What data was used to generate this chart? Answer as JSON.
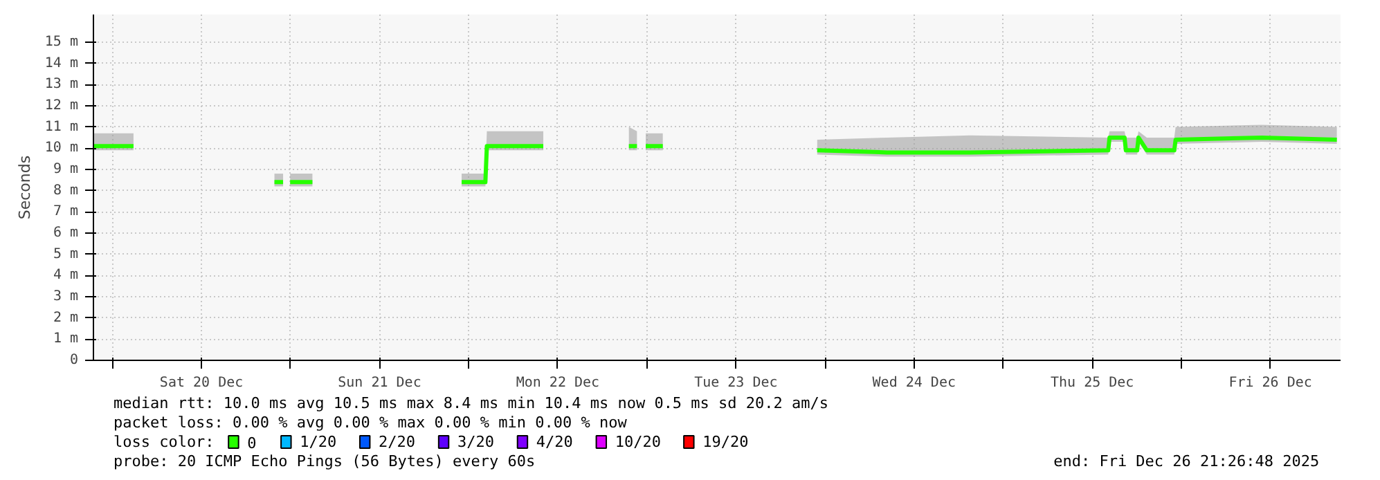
{
  "chart_data": {
    "type": "line",
    "ylabel": "Seconds",
    "xlim": [
      "2025-12-19T21:27",
      "2025-12-26T21:27"
    ],
    "xticks": [
      {
        "value": "2025-12-20T00:00",
        "label": null
      },
      {
        "value": "2025-12-20T12:00",
        "label": "Sat 20 Dec"
      },
      {
        "value": "2025-12-21T00:00",
        "label": null
      },
      {
        "value": "2025-12-21T12:00",
        "label": "Sun 21 Dec"
      },
      {
        "value": "2025-12-22T00:00",
        "label": null
      },
      {
        "value": "2025-12-22T12:00",
        "label": "Mon 22 Dec"
      },
      {
        "value": "2025-12-23T00:00",
        "label": null
      },
      {
        "value": "2025-12-23T12:00",
        "label": "Tue 23 Dec"
      },
      {
        "value": "2025-12-24T00:00",
        "label": null
      },
      {
        "value": "2025-12-24T12:00",
        "label": "Wed 24 Dec"
      },
      {
        "value": "2025-12-25T00:00",
        "label": null
      },
      {
        "value": "2025-12-25T12:00",
        "label": "Thu 25 Dec"
      },
      {
        "value": "2025-12-26T00:00",
        "label": null
      },
      {
        "value": "2025-12-26T12:00",
        "label": "Fri 26 Dec"
      }
    ],
    "ylim": [
      0,
      16.3
    ],
    "yticks": [
      0,
      {
        "value": 1,
        "label": "1 m"
      },
      {
        "value": 2,
        "label": "2 m"
      },
      {
        "value": 3,
        "label": "3 m"
      },
      {
        "value": 4,
        "label": "4 m"
      },
      {
        "value": 5,
        "label": "5 m"
      },
      {
        "value": 6,
        "label": "6 m"
      },
      {
        "value": 7,
        "label": "7 m"
      },
      {
        "value": 8,
        "label": "8 m"
      },
      {
        "value": 9,
        "label": "9 m"
      },
      {
        "value": 10,
        "label": "10 m"
      },
      {
        "value": 11,
        "label": "11 m"
      },
      {
        "value": 12,
        "label": "12 m"
      },
      {
        "value": 13,
        "label": "13 m"
      },
      {
        "value": 14,
        "label": "14 m"
      },
      {
        "value": 15,
        "label": "15 m"
      }
    ],
    "grid": true,
    "legend": "bottom",
    "legend_title": "loss color:",
    "series": [
      {
        "name": "0",
        "color": "#26ff00",
        "x": [
          "2025-12-19T21:27",
          "2025-12-20T02:51",
          "2025-12-20T12:00",
          "2025-12-20T21:50",
          "2025-12-20T23:00",
          "2025-12-20T23:25",
          "2025-12-20T23:57",
          "2025-12-21T02:57",
          "2025-12-21T12:00",
          "2025-12-21T23:03",
          "2025-12-22T02:15",
          "2025-12-22T02:27",
          "2025-12-22T10:03",
          "2025-12-22T16:00",
          "2025-12-22T21:35",
          "2025-12-22T22:40",
          "2025-12-22T23:10",
          "2025-12-22T23:51",
          "2025-12-23T02:09",
          "2025-12-23T12:00",
          "2025-12-23T22:57",
          "2025-12-24T08:21",
          "2025-12-24T19:33",
          "2025-12-25T14:09",
          "2025-12-25T14:20",
          "2025-12-25T16:21",
          "2025-12-25T16:32",
          "2025-12-25T18:03",
          "2025-12-25T18:14",
          "2025-12-25T19:21",
          "2025-12-25T19:32",
          "2025-12-25T23:03",
          "2025-12-25T23:14",
          "2025-12-26T10:51",
          "2025-12-26T20:57"
        ],
        "values": [
          10.1,
          10.1,
          null,
          8.4,
          8.4,
          null,
          8.4,
          8.4,
          null,
          8.4,
          8.4,
          10.1,
          10.1,
          null,
          10.1,
          10.1,
          null,
          10.1,
          10.1,
          null,
          9.9,
          9.8,
          9.8,
          9.9,
          10.5,
          10.5,
          9.9,
          9.9,
          10.5,
          9.9,
          9.9,
          9.9,
          10.4,
          10.5,
          10.4
        ],
        "lower": [
          9.9,
          9.9,
          null,
          8.2,
          8.2,
          null,
          8.2,
          8.2,
          null,
          8.2,
          8.2,
          9.9,
          9.9,
          null,
          9.9,
          9.9,
          null,
          9.9,
          9.9,
          null,
          9.7,
          9.6,
          9.6,
          9.7,
          10.3,
          10.3,
          9.7,
          9.7,
          10.3,
          9.7,
          9.7,
          9.7,
          10.2,
          10.3,
          10.2
        ],
        "upper": [
          10.7,
          10.7,
          null,
          8.8,
          8.8,
          null,
          8.8,
          8.8,
          null,
          8.8,
          8.8,
          10.8,
          10.8,
          null,
          11.0,
          10.8,
          null,
          10.7,
          10.7,
          null,
          10.4,
          10.5,
          10.6,
          10.5,
          10.8,
          10.8,
          10.5,
          10.5,
          10.8,
          10.5,
          10.5,
          10.5,
          11.0,
          11.1,
          11.0
        ]
      },
      {
        "name": "1/20",
        "color": "#00b8ff"
      },
      {
        "name": "2/20",
        "color": "#0059ff"
      },
      {
        "name": "3/20",
        "color": "#5e00ff"
      },
      {
        "name": "4/20",
        "color": "#7e00ff"
      },
      {
        "name": "10/20",
        "color": "#dd00ff"
      },
      {
        "name": "19/20",
        "color": "#ff0000"
      }
    ],
    "annotations": [
      "median rtt:  10.0 ms avg  10.5 ms max  8.4 ms min  10.4 ms now  0.5 ms sd  20.2   am/s",
      "packet loss: 0.00 % avg  0.00 % max  0.00 % min  0.00 % now",
      "probe:       20 ICMP Echo Pings (56 Bytes) every 60s",
      "end: Fri Dec 26 21:26:48 2025"
    ]
  }
}
